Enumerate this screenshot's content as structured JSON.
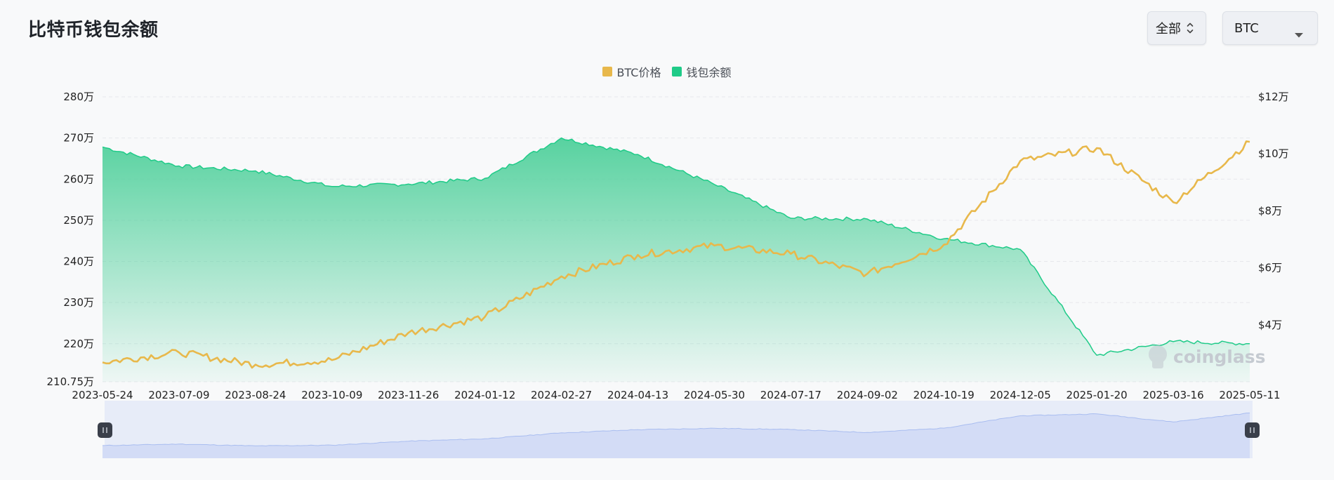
{
  "header": {
    "title": "比特币钱包余额",
    "range_select": {
      "label": "全部"
    },
    "coin_select": {
      "label": "BTC"
    }
  },
  "legend": [
    {
      "name": "BTC价格",
      "color": "#e8b84b"
    },
    {
      "name": "钱包余额",
      "color": "#1fcb88"
    }
  ],
  "watermark": "coinglass",
  "colors": {
    "price_line": "#e8b84b",
    "balance_line": "#1fcb88",
    "balance_fill_top": "#4fd09b",
    "slider_fill": "#d3dcf6",
    "slider_bg": "#e7ecf8",
    "slider_line": "#a9bdf0",
    "grip": "#3a3f4a"
  },
  "chart_data": {
    "type": "line",
    "x": [
      "2023-05-24",
      "2023-07-09",
      "2023-08-24",
      "2023-10-09",
      "2023-11-26",
      "2024-01-12",
      "2024-02-27",
      "2024-04-13",
      "2024-05-30",
      "2024-07-17",
      "2024-09-02",
      "2024-10-19",
      "2024-12-05",
      "2025-01-20",
      "2025-03-16",
      "2025-05-11"
    ],
    "x_tick_labels": [
      "2023-05-24",
      "2023-07-09",
      "2023-08-24",
      "2023-10-09",
      "2023-11-26",
      "2024-01-12",
      "2024-02-27",
      "2024-04-13",
      "2024-05-30",
      "2024-07-17",
      "2024-09-02",
      "2024-10-19",
      "2024-12-05",
      "2025-01-20",
      "2025-03-16",
      "2025-05-11"
    ],
    "y_left": {
      "ylim": [
        2107500,
        2800000
      ],
      "ticks": [
        2107500,
        2200000,
        2300000,
        2400000,
        2500000,
        2600000,
        2700000,
        2800000
      ],
      "tick_labels": [
        "210.75万",
        "220万",
        "230万",
        "240万",
        "250万",
        "260万",
        "270万",
        "280万"
      ]
    },
    "y_right": {
      "ylim": [
        20000,
        120000
      ],
      "ticks": [
        40000,
        60000,
        80000,
        100000,
        120000
      ],
      "tick_labels": [
        "$4万",
        "$6万",
        "$8万",
        "$10万",
        "$12万"
      ]
    },
    "series": [
      {
        "name": "钱包余额",
        "axis": "left",
        "type": "area",
        "values": [
          2678000,
          2632000,
          2620000,
          2582000,
          2588000,
          2602000,
          2700000,
          2660000,
          2587000,
          2505000,
          2503000,
          2455000,
          2429000,
          2172000,
          2205000,
          2200000
        ]
      },
      {
        "name": "BTC价格",
        "axis": "right",
        "type": "line",
        "values": [
          26800,
          30300,
          26000,
          27600,
          37200,
          42800,
          57000,
          64500,
          67800,
          64900,
          57900,
          68100,
          97500,
          102000,
          83000,
          104200
        ]
      }
    ],
    "grid": true,
    "legend_position": "top-center"
  }
}
